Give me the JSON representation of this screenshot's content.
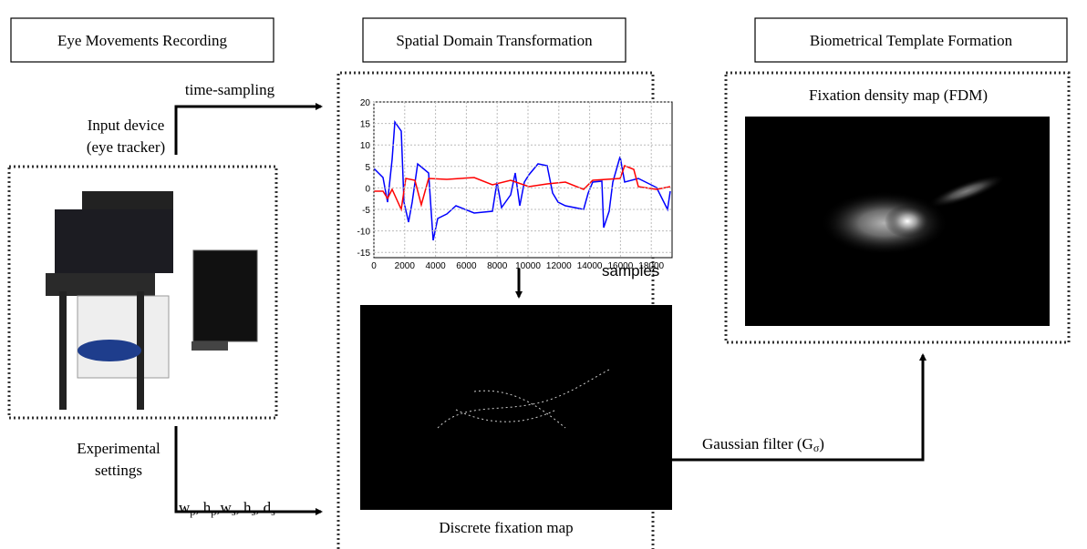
{
  "stages": [
    "Eye Movements Recording",
    "Spatial Domain Transformation",
    "Biometrical Template Formation"
  ],
  "time_sampling": "time-sampling",
  "input_device": [
    "Input device",
    "(eye tracker)"
  ],
  "experimental_settings": [
    "Experimental",
    "settings"
  ],
  "settings_params": [
    "w",
    "p",
    ", h",
    "p",
    ",w",
    "s",
    ", h",
    "s",
    ", d",
    "s"
  ],
  "plot": {
    "yticks": [
      20,
      15,
      10,
      5,
      0,
      -5,
      -10,
      -15
    ],
    "xticks": [
      0,
      2000,
      4000,
      6000,
      8000,
      10000,
      12000,
      14000,
      16000,
      18000
    ],
    "xlabel": "samples"
  },
  "discrete_map": "Discrete fixation map",
  "fdm": "Fixation density map (FDM)",
  "gaussian": [
    "Gaussian filter (G",
    "σ",
    ")"
  ]
}
